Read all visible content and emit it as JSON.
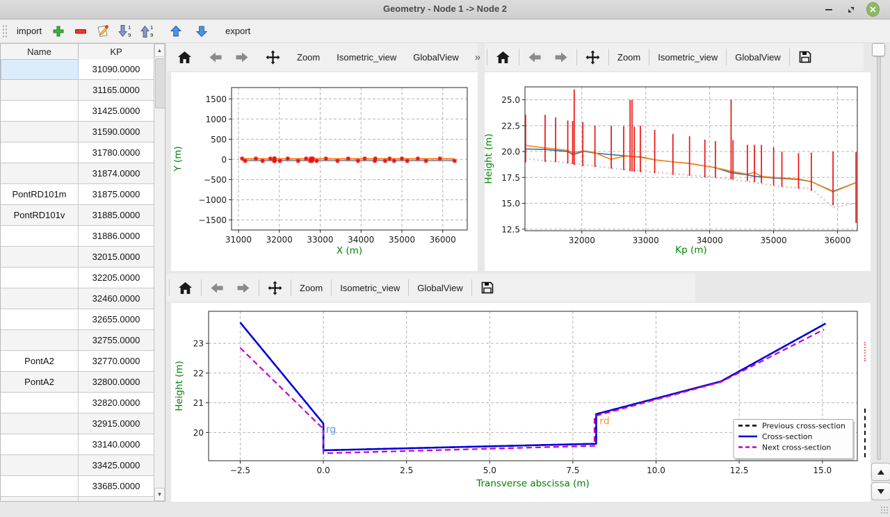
{
  "window": {
    "title": "Geometry - Node 1 -> Node 2",
    "controls": {
      "minimize": "minimize",
      "restore": "restore",
      "close": "close"
    }
  },
  "toolbar": {
    "import_label": "import",
    "export_label": "export",
    "icons": [
      "add-plus",
      "remove-minus",
      "edit-pencil",
      "sort-descending-1-9",
      "sort-ascending-1-9",
      "move-up-arrow",
      "move-down-arrow"
    ]
  },
  "table": {
    "columns": [
      "Name",
      "KP"
    ],
    "rows": [
      {
        "name": "",
        "kp": "31090.0000",
        "selected": true
      },
      {
        "name": "",
        "kp": "31165.0000"
      },
      {
        "name": "",
        "kp": "31425.0000"
      },
      {
        "name": "",
        "kp": "31590.0000"
      },
      {
        "name": "",
        "kp": "31780.0000"
      },
      {
        "name": "",
        "kp": "31874.0000"
      },
      {
        "name": "PontRD101m",
        "kp": "31875.0000"
      },
      {
        "name": "PontRD101v",
        "kp": "31885.0000"
      },
      {
        "name": "",
        "kp": "31886.0000"
      },
      {
        "name": "",
        "kp": "32015.0000"
      },
      {
        "name": "",
        "kp": "32205.0000"
      },
      {
        "name": "",
        "kp": "32460.0000"
      },
      {
        "name": "",
        "kp": "32655.0000"
      },
      {
        "name": "",
        "kp": "32755.0000"
      },
      {
        "name": "PontA2",
        "kp": "32770.0000"
      },
      {
        "name": "PontA2",
        "kp": "32800.0000"
      },
      {
        "name": "",
        "kp": "32820.0000"
      },
      {
        "name": "",
        "kp": "32915.0000"
      },
      {
        "name": "",
        "kp": "33140.0000"
      },
      {
        "name": "",
        "kp": "33425.0000"
      },
      {
        "name": "",
        "kp": "33685.0000"
      },
      {
        "name": "",
        "kp": ""
      }
    ]
  },
  "plot_toolbar": {
    "zoom_label": "Zoom",
    "isometric_label": "Isometric_view",
    "global_label": "GlobalView",
    "overflow_label": "»"
  },
  "colors": {
    "axis_label": "#008000",
    "grid": "#b3b3b3",
    "cross_section_blue": "#0000e0",
    "next_magenta": "#c400c4",
    "previous_black": "#000000",
    "profile_blue": "#1f77b4",
    "profile_orange": "#ff7f0e",
    "kp_red": "#ee1111",
    "close_button_green": "#8cb866"
  },
  "chart_data": [
    {
      "id": "plan",
      "type": "line",
      "xlabel": "X (m)",
      "ylabel": "Y (m)",
      "xlim": [
        30830,
        36600
      ],
      "ylim": [
        -1750,
        1780
      ],
      "grid": true,
      "xticks": {
        "values": [
          31000,
          32000,
          33000,
          34000,
          35000,
          36000
        ],
        "labels": [
          "31000",
          "32000",
          "33000",
          "34000",
          "35000",
          "36000"
        ]
      },
      "yticks": {
        "values": [
          -1500,
          -1000,
          -500,
          0,
          500,
          1000,
          1500
        ],
        "labels": [
          "−1500",
          "−1000",
          "−500",
          "0",
          "500",
          "1000",
          "1500"
        ]
      },
      "series": [
        {
          "name": "axis-line-gray",
          "type": "line",
          "color": "#8899aa",
          "width": 2,
          "x": [
            31090,
            36290
          ],
          "y": [
            -30,
            -30
          ]
        },
        {
          "name": "axis-line-orange",
          "type": "line",
          "color": "#ff7f0e",
          "width": 2,
          "x": [
            31090,
            36290
          ],
          "y": [
            15,
            15
          ]
        },
        {
          "name": "kp-markers",
          "type": "scatter",
          "marker": "star",
          "color": "#ee1111",
          "x": [
            31090,
            31165,
            31425,
            31590,
            31780,
            31874,
            31875,
            31885,
            31886,
            32015,
            32205,
            32460,
            32655,
            32755,
            32770,
            32800,
            32820,
            32915,
            33140,
            33425,
            33685,
            33925,
            34090,
            34335,
            34350,
            34590,
            34700,
            34810,
            35000,
            35130,
            35390,
            35590,
            35930,
            36290
          ],
          "y": [
            0,
            0,
            0,
            0,
            0,
            0,
            0,
            0,
            0,
            0,
            0,
            0,
            0,
            0,
            0,
            0,
            0,
            0,
            0,
            0,
            0,
            0,
            0,
            0,
            0,
            0,
            0,
            0,
            0,
            0,
            0,
            0,
            0,
            0
          ]
        }
      ]
    },
    {
      "id": "profile",
      "type": "line",
      "xlabel": "Kp (m)",
      "ylabel": "Height (m)",
      "xlim": [
        31110,
        36310
      ],
      "ylim": [
        12.35,
        26.25
      ],
      "grid": true,
      "xticks": {
        "values": [
          32000,
          33000,
          34000,
          35000,
          36000
        ],
        "labels": [
          "32000",
          "33000",
          "34000",
          "35000",
          "36000"
        ]
      },
      "yticks": {
        "values": [
          12.5,
          15.0,
          17.5,
          20.0,
          22.5,
          25.0
        ],
        "labels": [
          "12.5",
          "15.0",
          "17.5",
          "20.0",
          "22.5",
          "25.0"
        ]
      },
      "series": [
        {
          "name": "ground-dotted",
          "type": "line",
          "color": "#d9bcbc",
          "width": 2.2,
          "dash": [
            2,
            4
          ],
          "x": [
            31110,
            31780,
            32460,
            33140,
            33925,
            34335,
            34810,
            35130,
            35590,
            35930,
            36290
          ],
          "y": [
            19.3,
            18.9,
            18.4,
            18.0,
            17.6,
            17.3,
            16.9,
            16.6,
            16.4,
            14.6,
            15.0
          ]
        },
        {
          "name": "profile-blue",
          "type": "line",
          "color": "#1f77b4",
          "width": 1.6,
          "x": [
            31110,
            31425,
            31590,
            31780,
            31856,
            31874,
            31886,
            32015,
            32060,
            32205,
            32460,
            32655,
            32760,
            32820,
            32915,
            33140,
            33425,
            33685,
            33925,
            34090,
            34335,
            34590,
            34700,
            34810,
            35000,
            35130,
            35390,
            35590,
            35930,
            36290
          ],
          "y": [
            20.25,
            20.2,
            20.1,
            20.0,
            19.7,
            19.75,
            19.75,
            20.0,
            20.0,
            19.85,
            19.7,
            19.6,
            19.55,
            19.5,
            19.5,
            19.2,
            19.0,
            18.85,
            18.6,
            18.45,
            17.95,
            17.75,
            17.6,
            17.55,
            17.45,
            17.4,
            17.3,
            17.1,
            16.15,
            17.0
          ]
        },
        {
          "name": "profile-orange",
          "type": "line",
          "color": "#ff7f0e",
          "width": 1.6,
          "x": [
            31110,
            31425,
            31590,
            31780,
            31856,
            32015,
            32060,
            32205,
            32350,
            32460,
            32655,
            32760,
            32820,
            32915,
            33140,
            33425,
            33685,
            33925,
            34090,
            34335,
            34590,
            34700,
            34810,
            35000,
            35130,
            35390,
            35590,
            35930,
            36290
          ],
          "y": [
            20.6,
            20.35,
            20.25,
            20.1,
            19.9,
            20.05,
            20.05,
            19.9,
            19.5,
            19.25,
            19.55,
            19.55,
            19.5,
            19.45,
            19.2,
            19.0,
            18.85,
            18.6,
            18.45,
            18.1,
            17.8,
            18.0,
            17.6,
            17.5,
            17.45,
            17.35,
            17.1,
            16.1,
            17.0
          ]
        },
        {
          "name": "cross-section-markers",
          "type": "vlines",
          "color": "#ee1111",
          "width": 1.7,
          "segs": [
            [
              31120,
              18.95,
              23.55
            ],
            [
              31425,
              19.0,
              23.55
            ],
            [
              31590,
              19.0,
              23.3
            ],
            [
              31780,
              18.85,
              23.0
            ],
            [
              31856,
              18.8,
              22.95
            ],
            [
              31880,
              18.7,
              26.0
            ],
            [
              32015,
              18.6,
              22.85
            ],
            [
              32205,
              18.5,
              22.5
            ],
            [
              32460,
              18.35,
              22.5
            ],
            [
              32655,
              18.2,
              22.45
            ],
            [
              32755,
              18.1,
              25.0
            ],
            [
              32785,
              18.1,
              25.0
            ],
            [
              32820,
              18.05,
              22.4
            ],
            [
              32915,
              18.0,
              22.5
            ],
            [
              33140,
              17.9,
              22.1
            ],
            [
              33425,
              17.75,
              21.7
            ],
            [
              33685,
              17.65,
              21.5
            ],
            [
              33925,
              17.5,
              21.15
            ],
            [
              34090,
              17.45,
              21.0
            ],
            [
              34335,
              17.3,
              25.0
            ],
            [
              34365,
              17.3,
              21.1
            ],
            [
              34590,
              17.15,
              20.65
            ],
            [
              34700,
              17.05,
              20.65
            ],
            [
              34810,
              16.95,
              20.65
            ],
            [
              35000,
              16.75,
              20.4
            ],
            [
              35130,
              16.6,
              20.0
            ],
            [
              35390,
              16.4,
              19.85
            ],
            [
              35590,
              16.2,
              19.9
            ],
            [
              35930,
              14.8,
              20.0
            ],
            [
              36290,
              13.1,
              19.95
            ]
          ]
        }
      ]
    },
    {
      "id": "cross-section",
      "type": "line",
      "xlabel": "Transverse abscissa (m)",
      "ylabel": "Height (m)",
      "xlim": [
        -3.45,
        16.05
      ],
      "ylim": [
        19.05,
        24.08
      ],
      "grid": true,
      "xticks": {
        "values": [
          -2.5,
          0.0,
          2.5,
          5.0,
          7.5,
          10.0,
          12.5,
          15.0
        ],
        "labels": [
          "−2.5",
          "0.0",
          "2.5",
          "5.0",
          "7.5",
          "10.0",
          "12.5",
          "15.0"
        ]
      },
      "yticks": {
        "values": [
          20,
          21,
          22,
          23
        ],
        "labels": [
          "20",
          "21",
          "22",
          "23"
        ]
      },
      "series": [
        {
          "name": "previous-cross-section",
          "type": "line",
          "color": "#000000",
          "width": 2.5,
          "dash": [
            8,
            4
          ],
          "x": [
            -2.5,
            0,
            0,
            8.2,
            8.2,
            11.95,
            15.1
          ],
          "y": [
            23.7,
            20.3,
            19.4,
            19.62,
            20.62,
            21.72,
            23.67
          ]
        },
        {
          "name": "cross-section",
          "type": "line",
          "color": "#0000e0",
          "width": 2.5,
          "x": [
            -2.5,
            0,
            0,
            8.2,
            8.2,
            11.95,
            15.1
          ],
          "y": [
            23.7,
            20.3,
            19.4,
            19.62,
            20.62,
            21.72,
            23.67
          ]
        },
        {
          "name": "next-cross-section",
          "type": "line",
          "color": "#c400c4",
          "width": 2.2,
          "dash": [
            8,
            5
          ],
          "x": [
            -2.5,
            0,
            0,
            8.15,
            8.15,
            11.95,
            15.05
          ],
          "y": [
            22.85,
            20.12,
            19.3,
            19.55,
            20.55,
            21.7,
            23.47
          ]
        }
      ],
      "annotations": [
        {
          "x": 0.08,
          "y": 20.0,
          "text": "rg",
          "color": "#6495ed"
        },
        {
          "x": 8.3,
          "y": 20.28,
          "text": "rd",
          "color": "#ff9333"
        }
      ],
      "legend": {
        "entries": [
          {
            "label": "Previous cross-section",
            "color": "#000000",
            "dash": [
              6,
              4
            ]
          },
          {
            "label": "Cross-section",
            "color": "#0000e0",
            "dash": null
          },
          {
            "label": "Next cross-section",
            "color": "#c400c4",
            "dash": [
              6,
              4
            ]
          }
        ],
        "position": "lower right"
      }
    }
  ]
}
